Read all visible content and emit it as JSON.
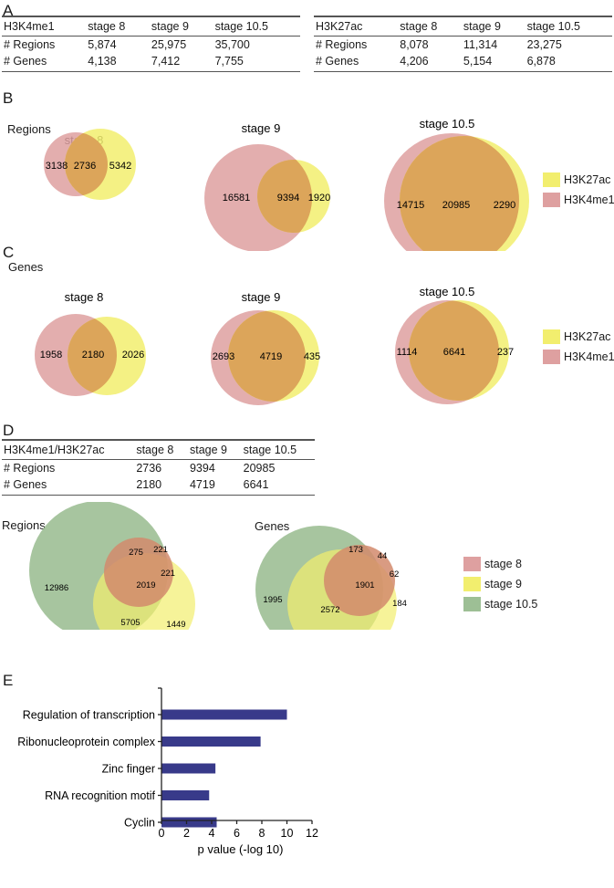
{
  "panels": {
    "A": {
      "letter": "A",
      "tables": [
        {
          "header": [
            "H3K4me1",
            "stage 8",
            "stage 9",
            "stage 10.5"
          ],
          "rows": [
            [
              "# Regions",
              "5,874",
              "25,975",
              "35,700"
            ],
            [
              "# Genes",
              "4,138",
              "7,412",
              "7,755"
            ]
          ]
        },
        {
          "header": [
            "H3K27ac",
            "stage 8",
            "stage 9",
            "stage 10.5"
          ],
          "rows": [
            [
              "# Regions",
              "8,078",
              "11,314",
              "23,275"
            ],
            [
              "# Genes",
              "4,206",
              "5,154",
              "6,878"
            ]
          ]
        }
      ]
    },
    "B": {
      "letter": "B",
      "label": "Regions",
      "venns": [
        {
          "title": "stage 8",
          "left_only": "3138",
          "overlap": "2736",
          "right_only": "5342"
        },
        {
          "title": "stage 9",
          "left_only": "16581",
          "overlap": "9394",
          "right_only": "1920"
        },
        {
          "title": "stage 10.5",
          "left_only": "14715",
          "overlap": "20985",
          "right_only": "2290"
        }
      ],
      "legend": [
        {
          "label": "H3K27ac",
          "color": "#f2ee6e"
        },
        {
          "label": "H3K4me1",
          "color": "#dea0a0"
        }
      ]
    },
    "C": {
      "letter": "C",
      "label": "Genes",
      "venns": [
        {
          "title": "stage 8",
          "left_only": "1958",
          "overlap": "2180",
          "right_only": "2026"
        },
        {
          "title": "stage 9",
          "left_only": "2693",
          "overlap": "4719",
          "right_only": "435"
        },
        {
          "title": "stage 10.5",
          "left_only": "1114",
          "overlap": "6641",
          "right_only": "237"
        }
      ],
      "legend": [
        {
          "label": "H3K27ac",
          "color": "#f2ee6e"
        },
        {
          "label": "H3K4me1",
          "color": "#dea0a0"
        }
      ]
    },
    "D": {
      "letter": "D",
      "table": {
        "header": [
          "H3K4me1/H3K27ac",
          "stage 8",
          "stage 9",
          "stage 10.5"
        ],
        "rows": [
          [
            "# Regions",
            "2736",
            "9394",
            "20985"
          ],
          [
            "# Genes",
            "2180",
            "4719",
            "6641"
          ]
        ]
      },
      "venn_regions": {
        "label": "Regions",
        "values": {
          "s105_only": "12986",
          "s8_s105": "275",
          "s8_only": "221",
          "s8_s9": "221",
          "all": "2019",
          "s9_s105": "5705",
          "s9_only": "1449"
        }
      },
      "venn_genes": {
        "label": "Genes",
        "values": {
          "s105_only": "1995",
          "s8_s105": "173",
          "s8_only": "44",
          "s8_s9": "62",
          "all": "1901",
          "s9_s105": "2572",
          "s9_only": "184"
        }
      },
      "legend": [
        {
          "label": "stage 8",
          "color": "#dea0a0"
        },
        {
          "label": "stage 9",
          "color": "#f2ee6e"
        },
        {
          "label": "stage 10.5",
          "color": "#9dbf95"
        }
      ]
    },
    "E": {
      "letter": "E"
    }
  },
  "colors": {
    "h3k4me1": "#dea0a0",
    "h3k27ac": "#f2ee6e",
    "overlap": "#dca55a",
    "stage105": "#9dbf95",
    "bar": "#383a8a"
  },
  "chart_data": {
    "type": "bar",
    "orientation": "horizontal",
    "title": "",
    "categories": [
      "Regulation of transcription",
      "Ribonucleoprotein complex",
      "Zinc finger",
      "RNA recognition motif",
      "Cyclin"
    ],
    "values": [
      10.0,
      7.9,
      4.3,
      3.8,
      4.4
    ],
    "xlabel": "p value (-log 10)",
    "ylabel": "",
    "xlim": [
      0,
      12
    ],
    "xticks": [
      "0",
      "2",
      "4",
      "6",
      "8",
      "10",
      "12"
    ],
    "grid": false,
    "color": "#383a8a"
  }
}
